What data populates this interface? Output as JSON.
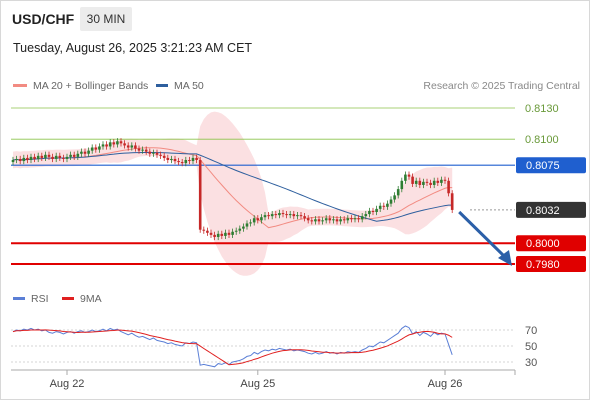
{
  "header": {
    "symbol": "USD/CHF",
    "timeframe": "30 MIN",
    "datetime": "Tuesday, August 26, 2025 3:21:23 AM CET"
  },
  "legend": {
    "items": [
      {
        "label": "MA 20 + Bollinger Bands",
        "color": "#f28b82"
      },
      {
        "label": "MA 50",
        "color": "#2e5f9e"
      }
    ],
    "credit": "Research © 2025 Trading Central"
  },
  "rsi_legend": {
    "items": [
      {
        "label": "RSI",
        "color": "#5b7fd6"
      },
      {
        "label": "9MA",
        "color": "#e02020"
      }
    ]
  },
  "colors": {
    "up": "#2e7d32",
    "down": "#c62828",
    "target_line": "#8bc34a",
    "resistance": "#1f5fcf",
    "support": "#e00000",
    "arrow": "#2b5fa8",
    "bollinger": "#fadadd",
    "ma20": "#f28b82",
    "ma50": "#2e5f9e"
  },
  "chart_data": {
    "type": "candlestick",
    "price_axis": {
      "range": [
        0.797,
        0.814
      ]
    },
    "x_labels": [
      "Aug 22",
      "Aug 25",
      "Aug 26"
    ],
    "levels": [
      {
        "price": 0.813,
        "label": "0.8130",
        "kind": "target"
      },
      {
        "price": 0.81,
        "label": "0.8100",
        "kind": "target"
      },
      {
        "price": 0.8075,
        "label": "0.8075",
        "kind": "resistance"
      },
      {
        "price": 0.8032,
        "label": "0.8032",
        "kind": "last"
      },
      {
        "price": 0.8,
        "label": "0.8000",
        "kind": "support"
      },
      {
        "price": 0.798,
        "label": "0.7980",
        "kind": "support"
      }
    ],
    "close_series": [
      0.808,
      0.8081,
      0.8079,
      0.8082,
      0.808,
      0.8083,
      0.8081,
      0.8084,
      0.8082,
      0.8085,
      0.8083,
      0.8081,
      0.8084,
      0.8082,
      0.8081,
      0.8083,
      0.8085,
      0.8083,
      0.8086,
      0.8088,
      0.8086,
      0.8089,
      0.8092,
      0.809,
      0.8093,
      0.8095,
      0.8093,
      0.8097,
      0.8095,
      0.8098,
      0.8096,
      0.8094,
      0.8092,
      0.8094,
      0.8091,
      0.8089,
      0.809,
      0.8088,
      0.8086,
      0.8087,
      0.8085,
      0.8084,
      0.8082,
      0.808,
      0.8081,
      0.8079,
      0.8078,
      0.8077,
      0.808,
      0.8079,
      0.8082,
      0.808,
      0.8013,
      0.8012,
      0.801,
      0.8008,
      0.8006,
      0.8009,
      0.8007,
      0.801,
      0.8008,
      0.8011,
      0.8012,
      0.8014,
      0.8016,
      0.8019,
      0.802,
      0.8024,
      0.8022,
      0.8025,
      0.8027,
      0.8026,
      0.8028,
      0.8027,
      0.8029,
      0.8028,
      0.8027,
      0.8028,
      0.8026,
      0.8027,
      0.8026,
      0.8024,
      0.8022,
      0.8021,
      0.8023,
      0.8021,
      0.8022,
      0.8024,
      0.8022,
      0.8023,
      0.8021,
      0.8023,
      0.8022,
      0.8024,
      0.8023,
      0.8024,
      0.8023,
      0.8026,
      0.8028,
      0.8031,
      0.803,
      0.8033,
      0.8036,
      0.8035,
      0.8038,
      0.8042,
      0.8046,
      0.8052,
      0.806,
      0.8066,
      0.8064,
      0.8057,
      0.806,
      0.8056,
      0.8059,
      0.8058,
      0.8056,
      0.806,
      0.8058,
      0.8061,
      0.806,
      0.8048,
      0.8032
    ],
    "rsi": {
      "levels": [
        70,
        50,
        30
      ],
      "values": [
        68,
        70,
        69,
        71,
        70,
        72,
        70,
        71,
        69,
        70,
        67,
        66,
        68,
        67,
        65,
        67,
        68,
        66,
        68,
        69,
        67,
        68,
        70,
        68,
        69,
        71,
        69,
        72,
        70,
        71,
        68,
        66,
        64,
        66,
        63,
        61,
        62,
        60,
        58,
        60,
        57,
        56,
        55,
        53,
        54,
        52,
        51,
        50,
        54,
        53,
        55,
        54,
        26,
        27,
        26,
        25,
        24,
        28,
        27,
        29,
        27,
        30,
        31,
        32,
        34,
        37,
        38,
        42,
        40,
        43,
        45,
        44,
        46,
        45,
        47,
        46,
        45,
        46,
        44,
        45,
        44,
        43,
        41,
        40,
        42,
        40,
        41,
        43,
        41,
        42,
        40,
        42,
        41,
        43,
        42,
        43,
        42,
        45,
        47,
        50,
        49,
        52,
        55,
        54,
        57,
        60,
        63,
        66,
        72,
        75,
        73,
        65,
        68,
        63,
        67,
        65,
        62,
        67,
        64,
        66,
        65,
        52,
        39
      ]
    }
  }
}
